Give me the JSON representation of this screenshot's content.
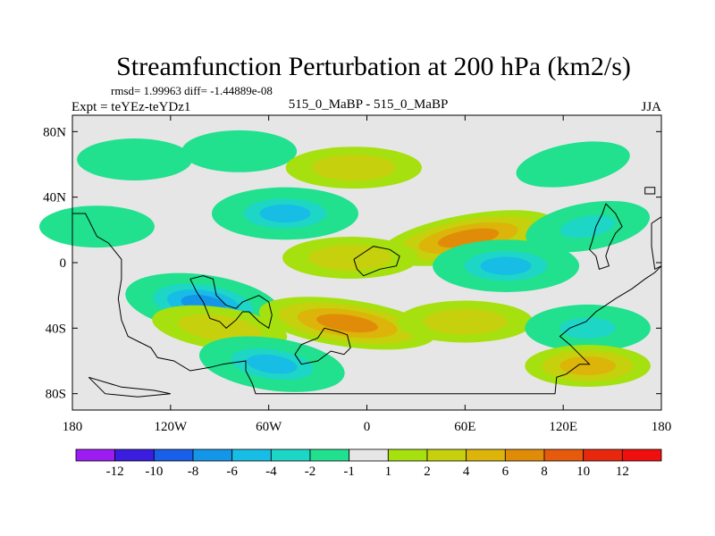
{
  "chart_data": {
    "type": "heatmap",
    "title": "Streamfunction Perturbation at 200 hPa (km2/s)",
    "stats_line": "rmsd= 1.99963 diff= -1.44889e-08",
    "left_label": "Expt = teYEz-teYDz1",
    "center_label": "515_0_MaBP - 515_0_MaBP",
    "right_label": "JJA",
    "xlim": [
      -180,
      180
    ],
    "ylim": [
      -90,
      90
    ],
    "x_ticks": [
      {
        "value": -180,
        "label": "180"
      },
      {
        "value": -120,
        "label": "120W"
      },
      {
        "value": -60,
        "label": "60W"
      },
      {
        "value": 0,
        "label": "0"
      },
      {
        "value": 60,
        "label": "60E"
      },
      {
        "value": 120,
        "label": "120E"
      },
      {
        "value": 180,
        "label": "180"
      }
    ],
    "y_ticks": [
      {
        "value": 80,
        "label": "80N"
      },
      {
        "value": 40,
        "label": "40N"
      },
      {
        "value": 0,
        "label": "0"
      },
      {
        "value": -40,
        "label": "40S"
      },
      {
        "value": -80,
        "label": "80S"
      }
    ],
    "colorbar": {
      "labels": [
        "-12",
        "-10",
        "-8",
        "-6",
        "-4",
        "-2",
        "-1",
        "1",
        "2",
        "4",
        "6",
        "8",
        "10",
        "12"
      ],
      "colors": [
        "#9d1cf2",
        "#3b1de0",
        "#1a5fe8",
        "#1496e8",
        "#18bde6",
        "#1ed6c6",
        "#21e08e",
        "#e6e6e6",
        "#a6e00f",
        "#c6d00c",
        "#dcb40a",
        "#e08c08",
        "#e65a0c",
        "#e8280e",
        "#f00e0e"
      ]
    },
    "anomalies": [
      {
        "lon": -142,
        "lat": 63,
        "value": -2
      },
      {
        "lon": -78,
        "lat": 68,
        "value": -2
      },
      {
        "lon": -8,
        "lat": 58,
        "value": 2
      },
      {
        "lon": 126,
        "lat": 60,
        "value": -2
      },
      {
        "lon": -50,
        "lat": 30,
        "value": -6
      },
      {
        "lon": 62,
        "lat": 15,
        "value": 6
      },
      {
        "lon": 135,
        "lat": 22,
        "value": -4
      },
      {
        "lon": -165,
        "lat": 22,
        "value": -2
      },
      {
        "lon": 85,
        "lat": -2,
        "value": -6
      },
      {
        "lon": -100,
        "lat": -25,
        "value": -8
      },
      {
        "lon": -12,
        "lat": -37,
        "value": 6
      },
      {
        "lon": -90,
        "lat": -40,
        "value": 2
      },
      {
        "lon": 60,
        "lat": -36,
        "value": 2
      },
      {
        "lon": 135,
        "lat": -40,
        "value": -4
      },
      {
        "lon": -58,
        "lat": -62,
        "value": -6
      },
      {
        "lon": 135,
        "lat": -63,
        "value": 4
      },
      {
        "lon": -10,
        "lat": 3,
        "value": 2
      }
    ]
  }
}
